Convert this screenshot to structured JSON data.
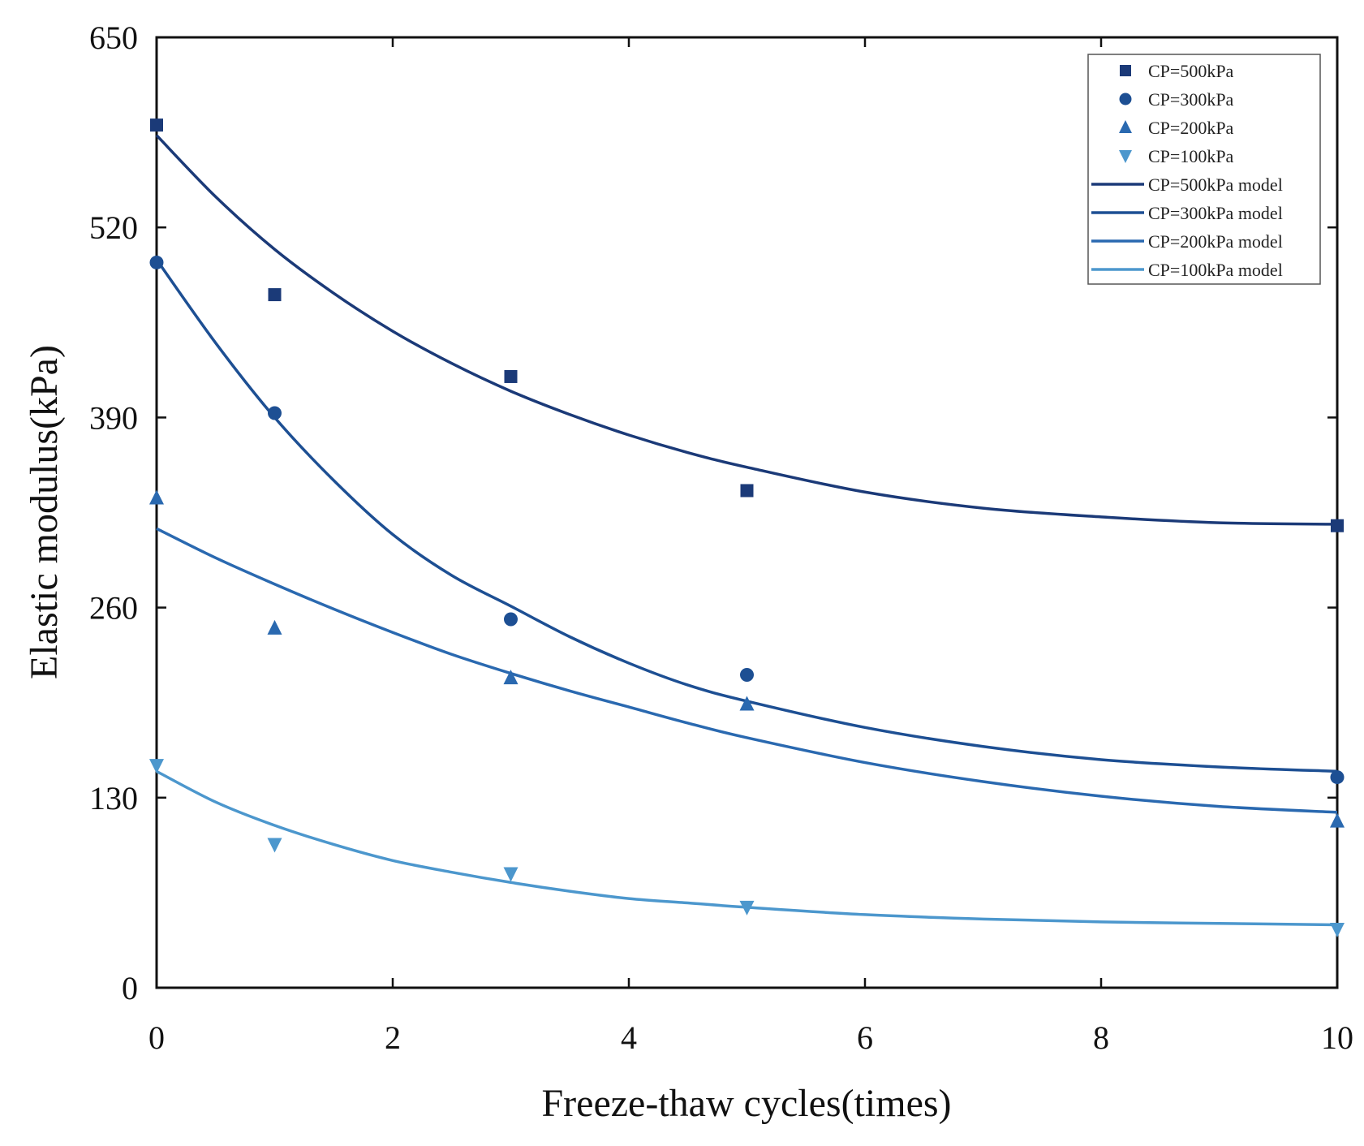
{
  "chart_data": {
    "type": "scatter",
    "title": "",
    "xlabel": "Freeze-thaw cycles(times)",
    "ylabel": "Elastic modulus(kPa)",
    "xlim": [
      0,
      10
    ],
    "ylim": [
      0,
      650
    ],
    "xticks": [
      0,
      2,
      4,
      6,
      8,
      10
    ],
    "yticks": [
      0,
      130,
      260,
      390,
      520,
      650
    ],
    "grid": false,
    "legend_position": "top-right",
    "series": [
      {
        "name": "CP=500kPa",
        "marker": "square",
        "color": "#1b3a78",
        "x": [
          0,
          1,
          3,
          5,
          10
        ],
        "y": [
          590,
          474,
          418,
          340,
          316
        ]
      },
      {
        "name": "CP=300kPa",
        "marker": "circle",
        "color": "#1d4f93",
        "x": [
          0,
          1,
          3,
          5,
          10
        ],
        "y": [
          496,
          393,
          252,
          214,
          144
        ]
      },
      {
        "name": "CP=200kPa",
        "marker": "triangle-up",
        "color": "#2a69b0",
        "x": [
          0,
          1,
          3,
          5,
          10
        ],
        "y": [
          335,
          246,
          212,
          194,
          114
        ]
      },
      {
        "name": "CP=100kPa",
        "marker": "triangle-down",
        "color": "#4c97cd",
        "x": [
          0,
          1,
          3,
          5,
          10
        ],
        "y": [
          152,
          98,
          78,
          55,
          40
        ]
      }
    ],
    "models": [
      {
        "name": "CP=500kPa model",
        "color": "#1b3a78",
        "x": [
          0,
          0.5,
          1,
          1.5,
          2,
          2.5,
          3,
          3.5,
          4,
          4.5,
          5,
          6,
          7,
          8,
          9,
          10
        ],
        "y": [
          583,
          541,
          505,
          475,
          449,
          427,
          408,
          392,
          378,
          366,
          356,
          339,
          328,
          322,
          318,
          317
        ]
      },
      {
        "name": "CP=300kPa model",
        "color": "#1d4f93",
        "x": [
          0,
          0.5,
          1,
          1.5,
          2,
          2.5,
          3,
          3.5,
          4,
          4.5,
          5,
          6,
          7,
          8,
          9,
          10
        ],
        "y": [
          498,
          441,
          390,
          347,
          310,
          282,
          261,
          240,
          222,
          207,
          196,
          178,
          165,
          156,
          151,
          148
        ]
      },
      {
        "name": "CP=200kPa model",
        "color": "#2a69b0",
        "x": [
          0,
          0.5,
          1,
          1.5,
          2,
          2.5,
          3,
          3.5,
          4,
          4.5,
          5,
          6,
          7,
          8,
          9,
          10
        ],
        "y": [
          314,
          294,
          276,
          259,
          243,
          228,
          215,
          203,
          192,
          181,
          171,
          154,
          141,
          131,
          124,
          120
        ]
      },
      {
        "name": "CP=100kPa model",
        "color": "#4c97cd",
        "x": [
          0,
          0.5,
          1,
          1.5,
          2,
          2.5,
          3,
          3.5,
          4,
          4.5,
          5,
          6,
          7,
          8,
          9,
          10
        ],
        "y": [
          148,
          127,
          111,
          98,
          87,
          79,
          72,
          66,
          61,
          58,
          55,
          50,
          47,
          45,
          44,
          43
        ]
      }
    ]
  }
}
